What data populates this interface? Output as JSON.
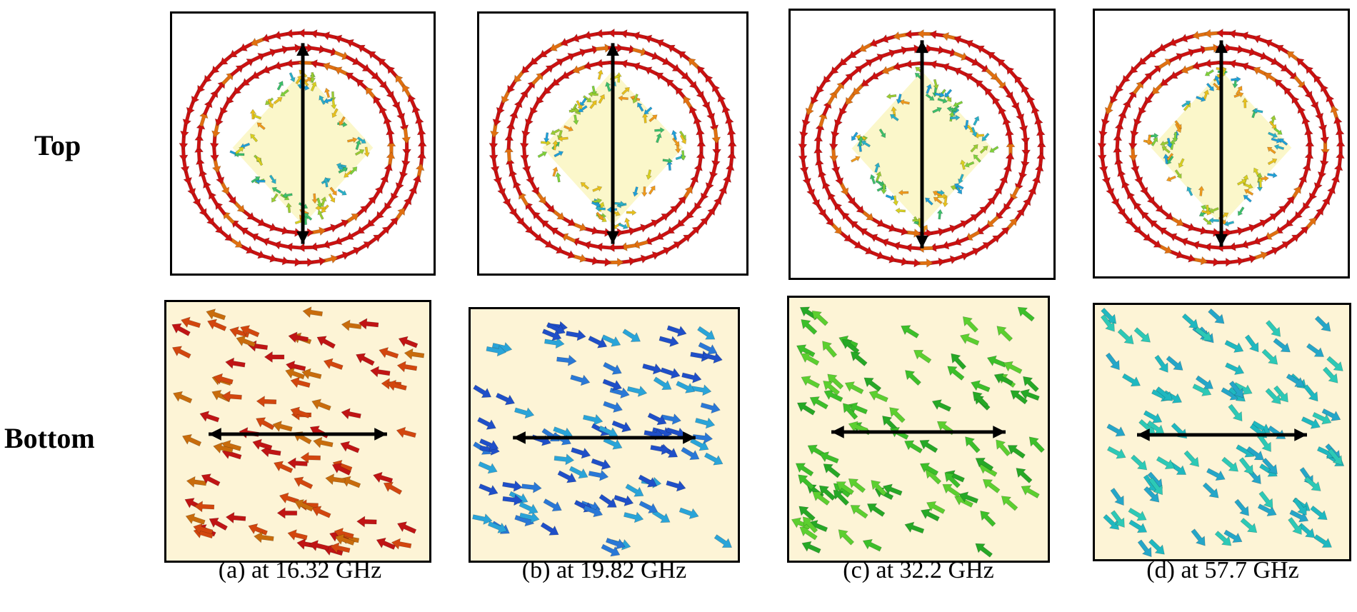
{
  "rows": {
    "top": "Top",
    "bottom": "Bottom"
  },
  "captions": [
    "(a) at 16.32 GHz",
    "(b) at 19.82 GHz",
    "(c) at 32.2 GHz",
    "(d) at 57.7 GHz"
  ],
  "panels": [
    {
      "top_arrow": "down",
      "bottom_arrow": "left",
      "bottom_colors": [
        "#c01414",
        "#d2460e",
        "#c86c0c"
      ],
      "bottom_angle": 195,
      "ring_color": "#cc1111"
    },
    {
      "top_arrow": "down",
      "bottom_arrow": "right",
      "bottom_colors": [
        "#1f4fc8",
        "#2a78d6",
        "#2aa4d8"
      ],
      "bottom_angle": 20,
      "ring_color": "#cc1111"
    },
    {
      "top_arrow": "down",
      "bottom_arrow": "left",
      "bottom_colors": [
        "#26a826",
        "#3cbf2a",
        "#5ccf30"
      ],
      "bottom_angle": 215,
      "ring_color": "#cc1111"
    },
    {
      "top_arrow": "up",
      "bottom_arrow": "right",
      "bottom_colors": [
        "#1fb8c0",
        "#25a6c8",
        "#2dc9b6"
      ],
      "bottom_angle": 40,
      "ring_color": "#cc1111"
    }
  ],
  "colors": {
    "background_fill": "#fdf4d6",
    "polarization_arrow": "#000000"
  }
}
